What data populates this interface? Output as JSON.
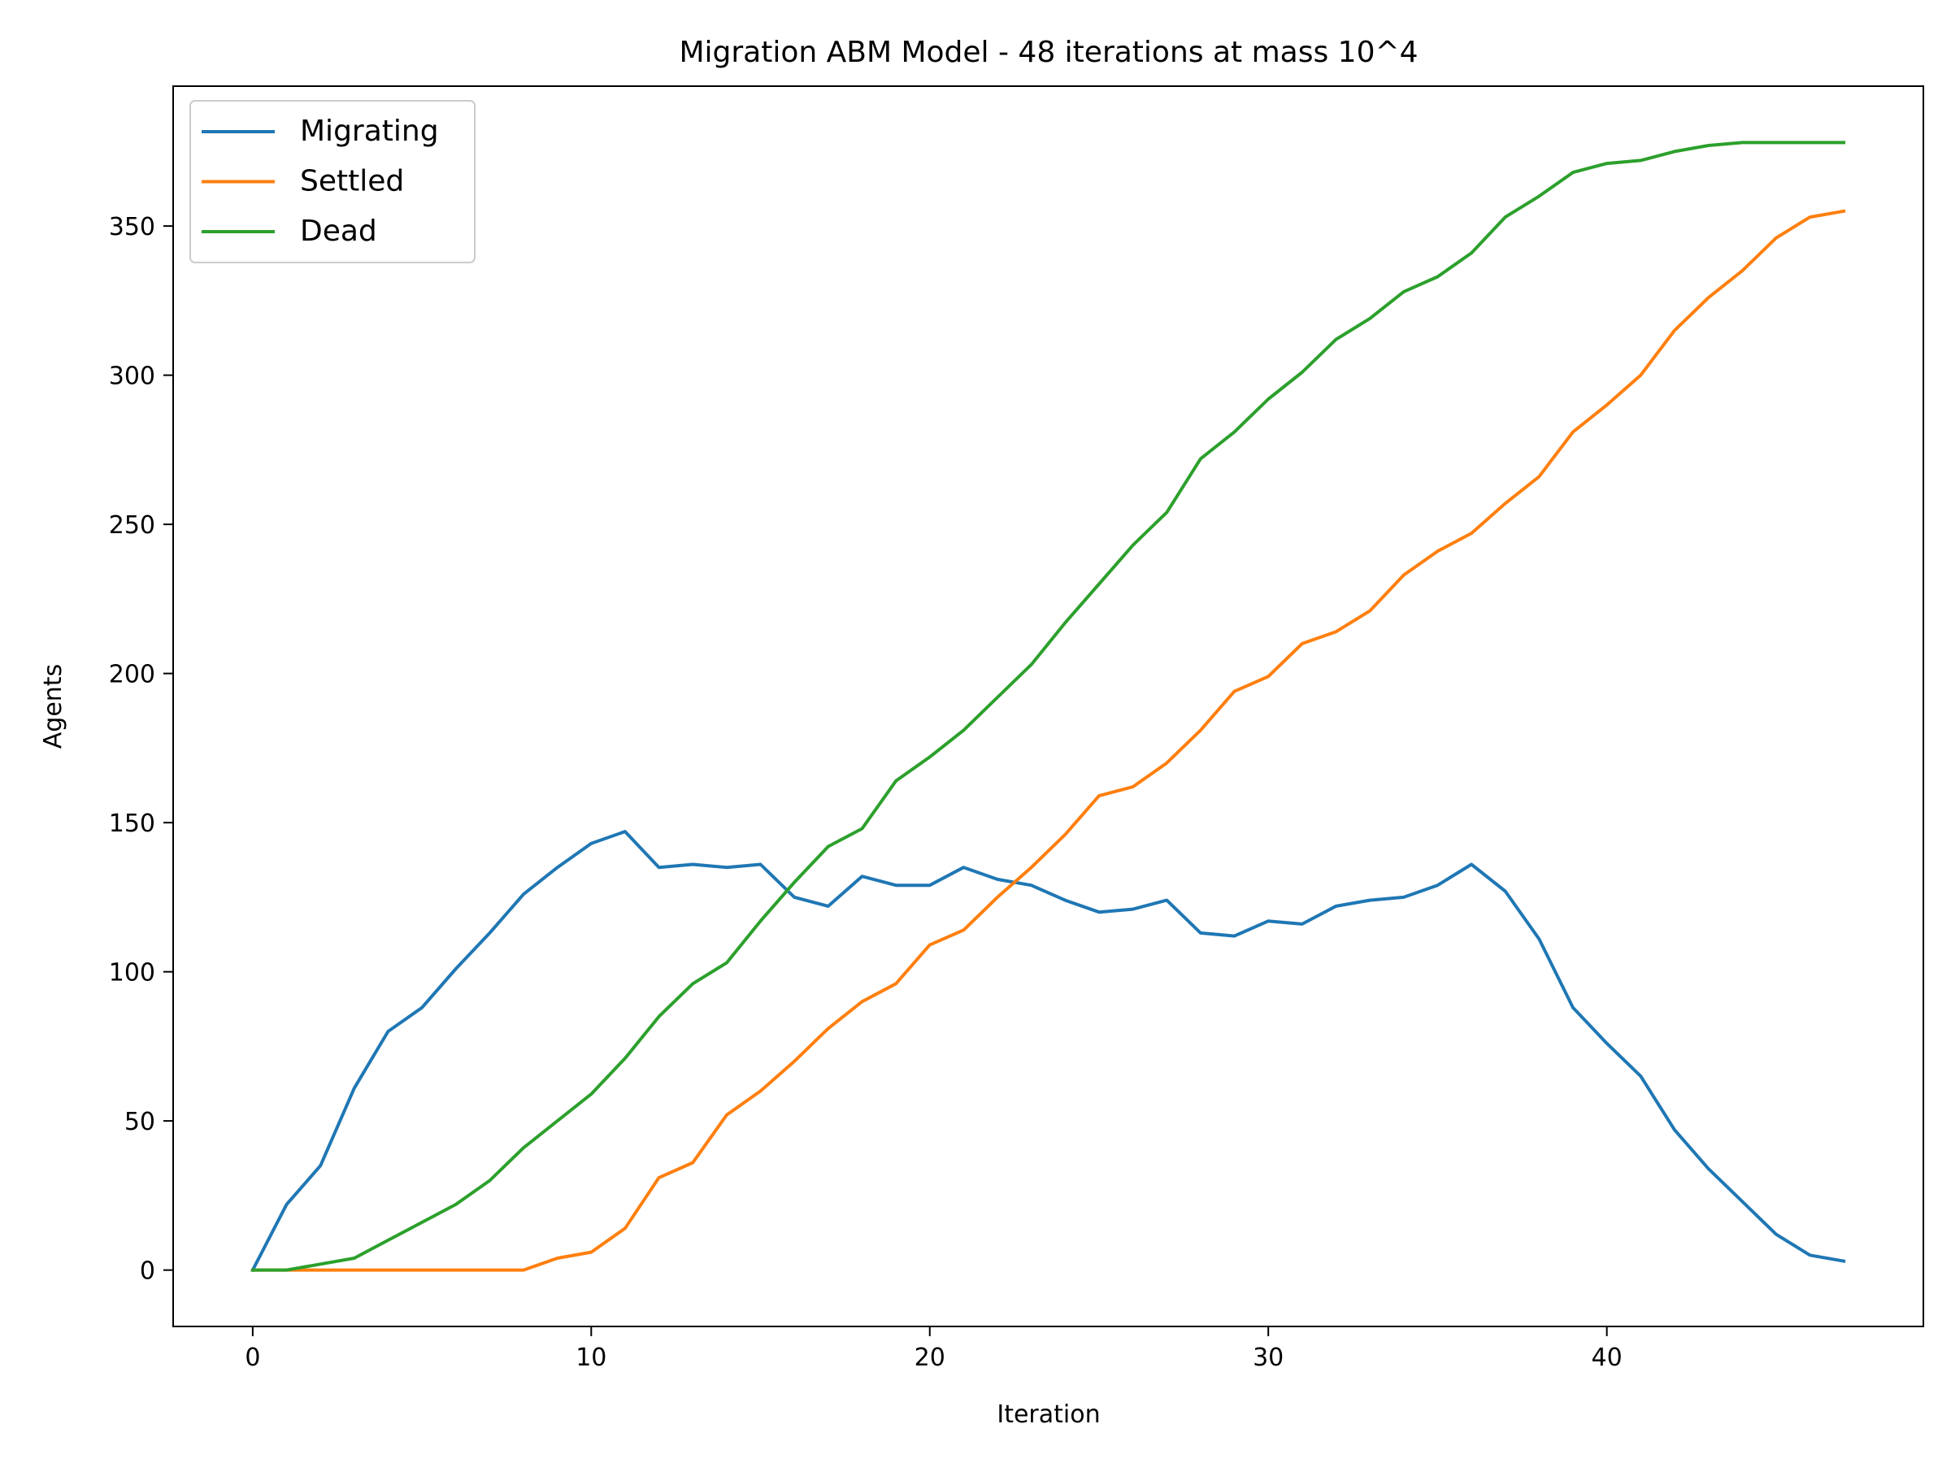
{
  "chart_data": {
    "type": "line",
    "title": "Migration ABM Model - 48 iterations at mass 10^4",
    "xlabel": "Iteration",
    "ylabel": "Agents",
    "xlim": [
      -2.35,
      49.35
    ],
    "ylim": [
      -18.9,
      396.9
    ],
    "xticks": [
      0,
      10,
      20,
      30,
      40
    ],
    "yticks": [
      0,
      50,
      100,
      150,
      200,
      250,
      300,
      350
    ],
    "grid": false,
    "legend_position": "upper left",
    "x": [
      0,
      1,
      2,
      3,
      4,
      5,
      6,
      7,
      8,
      9,
      10,
      11,
      12,
      13,
      14,
      15,
      16,
      17,
      18,
      19,
      20,
      21,
      22,
      23,
      24,
      25,
      26,
      27,
      28,
      29,
      30,
      31,
      32,
      33,
      34,
      35,
      36,
      37,
      38,
      39,
      40,
      41,
      42,
      43,
      44,
      45,
      46,
      47
    ],
    "series": [
      {
        "name": "Migrating",
        "color": "#1f77b4",
        "values": [
          0,
          22,
          35,
          61,
          80,
          88,
          101,
          113,
          126,
          135,
          143,
          147,
          135,
          136,
          135,
          136,
          125,
          122,
          132,
          129,
          129,
          135,
          131,
          129,
          124,
          120,
          121,
          124,
          113,
          112,
          117,
          116,
          122,
          124,
          125,
          129,
          136,
          127,
          111,
          88,
          76,
          65,
          47,
          34,
          23,
          12,
          5,
          3
        ]
      },
      {
        "name": "Settled",
        "color": "#ff7f0e",
        "values": [
          0,
          0,
          0,
          0,
          0,
          0,
          0,
          0,
          0,
          4,
          6,
          14,
          31,
          36,
          52,
          60,
          70,
          81,
          90,
          96,
          109,
          114,
          125,
          135,
          146,
          159,
          162,
          170,
          181,
          194,
          199,
          210,
          214,
          221,
          233,
          241,
          247,
          257,
          266,
          281,
          290,
          300,
          315,
          326,
          335,
          346,
          353,
          355
        ]
      },
      {
        "name": "Dead",
        "color": "#2ca02c",
        "values": [
          0,
          0,
          2,
          4,
          10,
          16,
          22,
          30,
          41,
          50,
          59,
          71,
          85,
          96,
          103,
          117,
          130,
          142,
          148,
          164,
          172,
          181,
          192,
          203,
          217,
          230,
          243,
          254,
          272,
          281,
          292,
          301,
          312,
          319,
          328,
          333,
          341,
          353,
          360,
          368,
          371,
          372,
          375,
          377,
          378,
          378,
          378,
          378
        ]
      }
    ]
  }
}
